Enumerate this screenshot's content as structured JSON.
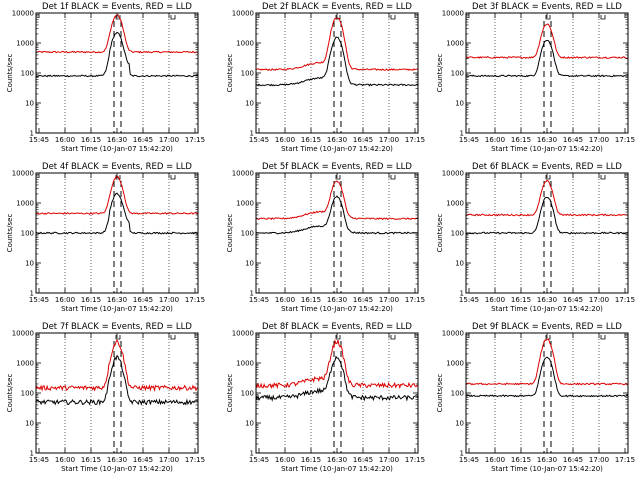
{
  "figure": {
    "colors": {
      "events": "#000000",
      "lld": "#dd0000",
      "background": "#ffffff"
    },
    "x_ticks": [
      "15:45",
      "16:00",
      "16:15",
      "16:30",
      "16:45",
      "17:00",
      "17:15"
    ],
    "y_ticks": [
      "1",
      "10",
      "100",
      "1000",
      "10000"
    ],
    "xlabel": "Start Time (10-Jan-07 15:42:20)",
    "ylabel": "Counts/sec",
    "marker_labels": [
      "U",
      "U"
    ]
  },
  "chart_data": [
    {
      "type": "line",
      "title": "Det 1f BLACK = Events, RED = LLD",
      "ylim": [
        1,
        10000
      ],
      "yscale": "log",
      "grid": "dotted vertical",
      "series": [
        {
          "name": "RED = LLD",
          "color": "#dd0000",
          "baseline": 500,
          "peak": 8000,
          "shape": "flat"
        },
        {
          "name": "BLACK = Events",
          "color": "#000000",
          "baseline": 80,
          "peak": 2000,
          "shape": "step"
        }
      ]
    },
    {
      "type": "line",
      "title": "Det 2f BLACK = Events, RED = LLD",
      "ylim": [
        1,
        10000
      ],
      "yscale": "log",
      "grid": "dotted vertical",
      "series": [
        {
          "name": "RED = LLD",
          "color": "#dd0000",
          "baseline": 130,
          "peak": 7000,
          "shape": "hump"
        },
        {
          "name": "BLACK = Events",
          "color": "#000000",
          "baseline": 40,
          "peak": 1500,
          "shape": "hump"
        }
      ]
    },
    {
      "type": "line",
      "title": "Det 3f BLACK = Events, RED = LLD",
      "ylim": [
        1,
        10000
      ],
      "yscale": "log",
      "grid": "dotted vertical",
      "series": [
        {
          "name": "RED = LLD",
          "color": "#dd0000",
          "baseline": 330,
          "peak": 4000,
          "shape": "flat"
        },
        {
          "name": "BLACK = Events",
          "color": "#000000",
          "baseline": 80,
          "peak": 1200,
          "shape": "flat"
        }
      ]
    },
    {
      "type": "line",
      "title": "Det 4f BLACK = Events, RED = LLD",
      "ylim": [
        1,
        10000
      ],
      "yscale": "log",
      "grid": "dotted vertical",
      "series": [
        {
          "name": "RED = LLD",
          "color": "#dd0000",
          "baseline": 450,
          "peak": 7000,
          "shape": "flat"
        },
        {
          "name": "BLACK = Events",
          "color": "#000000",
          "baseline": 100,
          "peak": 1800,
          "shape": "step"
        }
      ]
    },
    {
      "type": "line",
      "title": "Det 5f BLACK = Events, RED = LLD",
      "ylim": [
        1,
        10000
      ],
      "yscale": "log",
      "grid": "dotted vertical",
      "series": [
        {
          "name": "RED = LLD",
          "color": "#dd0000",
          "baseline": 300,
          "peak": 5000,
          "shape": "hump"
        },
        {
          "name": "BLACK = Events",
          "color": "#000000",
          "baseline": 100,
          "peak": 1500,
          "shape": "hump"
        }
      ]
    },
    {
      "type": "line",
      "title": "Det 6f BLACK = Events, RED = LLD",
      "ylim": [
        1,
        10000
      ],
      "yscale": "log",
      "grid": "dotted vertical",
      "series": [
        {
          "name": "RED = LLD",
          "color": "#dd0000",
          "baseline": 400,
          "peak": 5000,
          "shape": "flat"
        },
        {
          "name": "BLACK = Events",
          "color": "#000000",
          "baseline": 100,
          "peak": 1500,
          "shape": "flat"
        }
      ]
    },
    {
      "type": "line",
      "title": "Det 7f BLACK = Events, RED = LLD",
      "ylim": [
        1,
        10000
      ],
      "yscale": "log",
      "grid": "dotted vertical",
      "series": [
        {
          "name": "RED = LLD",
          "color": "#dd0000",
          "baseline": 150,
          "peak": 5000,
          "shape": "noisy"
        },
        {
          "name": "BLACK = Events",
          "color": "#000000",
          "baseline": 50,
          "peak": 1500,
          "shape": "noisy"
        }
      ]
    },
    {
      "type": "line",
      "title": "Det 8f BLACK = Events, RED = LLD",
      "ylim": [
        1,
        10000
      ],
      "yscale": "log",
      "grid": "dotted vertical",
      "series": [
        {
          "name": "RED = LLD",
          "color": "#dd0000",
          "baseline": 180,
          "peak": 5000,
          "shape": "noisy-hump"
        },
        {
          "name": "BLACK = Events",
          "color": "#000000",
          "baseline": 70,
          "peak": 1500,
          "shape": "noisy-hump"
        }
      ]
    },
    {
      "type": "line",
      "title": "Det 9f BLACK = Events, RED = LLD",
      "ylim": [
        1,
        10000
      ],
      "yscale": "log",
      "grid": "dotted vertical",
      "series": [
        {
          "name": "RED = LLD",
          "color": "#dd0000",
          "baseline": 200,
          "peak": 6000,
          "shape": "flat"
        },
        {
          "name": "BLACK = Events",
          "color": "#000000",
          "baseline": 80,
          "peak": 1500,
          "shape": "flat"
        }
      ]
    }
  ]
}
